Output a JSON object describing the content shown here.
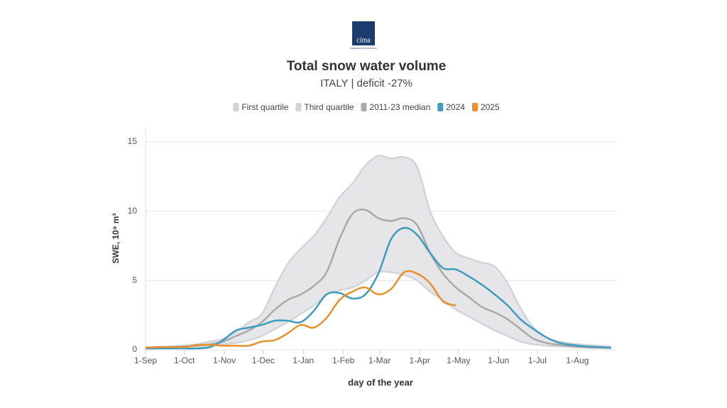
{
  "logo": {
    "name": "cima",
    "tagline": "RESEARCH FOUNDATION"
  },
  "chart_data": {
    "type": "line",
    "title": "Total snow water volume",
    "subtitle": "ITALY | deficit -27%",
    "xlabel": "day of the year",
    "ylabel": "SWE, 10⁹ m³",
    "x": [
      0,
      10,
      20,
      30,
      40,
      50,
      60,
      70,
      80,
      90,
      100,
      110,
      120,
      130,
      140,
      150,
      160,
      170,
      180,
      190,
      200,
      210,
      220,
      230,
      240,
      250,
      260,
      270,
      280,
      290,
      300,
      310,
      320,
      330,
      340,
      350,
      360
    ],
    "xlim": [
      0,
      364
    ],
    "xticks": [
      {
        "value": 0,
        "label": "1-Sep"
      },
      {
        "value": 30,
        "label": "1-Oct"
      },
      {
        "value": 61,
        "label": "1-Nov"
      },
      {
        "value": 91,
        "label": "1-Dec"
      },
      {
        "value": 122,
        "label": "1-Jan"
      },
      {
        "value": 153,
        "label": "1-Feb"
      },
      {
        "value": 181,
        "label": "1-Mar"
      },
      {
        "value": 212,
        "label": "1-Apr"
      },
      {
        "value": 242,
        "label": "1-May"
      },
      {
        "value": 273,
        "label": "1-Jun"
      },
      {
        "value": 303,
        "label": "1-Jul"
      },
      {
        "value": 334,
        "label": "1-Aug"
      }
    ],
    "ylim": [
      0,
      15
    ],
    "yticks": [
      0,
      5,
      10,
      15
    ],
    "grid": true,
    "legend": "top",
    "band_color": "#e6e6e8",
    "series": [
      {
        "name": "First quartile",
        "color": "#d3d4d9",
        "values": [
          0.1,
          0.1,
          0.15,
          0.2,
          0.25,
          0.3,
          0.4,
          0.5,
          0.7,
          1.0,
          1.5,
          2.0,
          2.6,
          3.2,
          4.0,
          4.3,
          4.5,
          5.0,
          5.6,
          5.6,
          5.4,
          5.0,
          4.2,
          3.6,
          2.9,
          2.4,
          1.9,
          1.4,
          1.0,
          0.6,
          0.4,
          0.3,
          0.25,
          0.2,
          0.15,
          0.12,
          0.1
        ]
      },
      {
        "name": "Third quartile",
        "color": "#d3d4d9",
        "values": [
          0.2,
          0.2,
          0.25,
          0.3,
          0.4,
          0.6,
          0.8,
          1.3,
          2.0,
          2.6,
          4.5,
          6.2,
          7.3,
          8.2,
          9.5,
          11.0,
          12.0,
          13.3,
          14.0,
          13.8,
          13.9,
          13.2,
          10.0,
          8.2,
          7.0,
          6.6,
          6.3,
          6.0,
          4.8,
          3.0,
          1.6,
          0.9,
          0.6,
          0.45,
          0.35,
          0.3,
          0.25
        ]
      },
      {
        "name": "2011-23 median",
        "color": "#a9a9a9",
        "values": [
          0.15,
          0.15,
          0.2,
          0.25,
          0.3,
          0.4,
          0.6,
          1.0,
          1.4,
          2.0,
          2.9,
          3.6,
          4.0,
          4.6,
          5.6,
          8.0,
          9.8,
          10.1,
          9.5,
          9.3,
          9.5,
          9.0,
          7.0,
          5.5,
          4.5,
          3.8,
          3.1,
          2.7,
          2.2,
          1.5,
          0.8,
          0.5,
          0.35,
          0.25,
          0.2,
          0.18,
          0.15
        ]
      },
      {
        "name": "2024",
        "color": "#3f9bbf",
        "values": [
          0.1,
          0.1,
          0.1,
          0.1,
          0.1,
          0.2,
          0.7,
          1.4,
          1.6,
          1.8,
          2.1,
          2.1,
          2.0,
          2.8,
          4.0,
          4.1,
          3.7,
          4.0,
          5.5,
          8.0,
          8.8,
          8.3,
          7.0,
          5.9,
          5.8,
          5.3,
          4.7,
          4.0,
          3.2,
          2.2,
          1.5,
          0.9,
          0.5,
          0.35,
          0.25,
          0.2,
          0.15
        ]
      },
      {
        "name": "2025",
        "color": "#e8902d",
        "values": [
          0.15,
          0.2,
          0.2,
          0.2,
          0.35,
          0.35,
          0.3,
          0.3,
          0.3,
          0.6,
          0.7,
          1.2,
          1.8,
          1.6,
          2.3,
          3.6,
          4.2,
          4.5,
          4.0,
          4.4,
          5.6,
          5.5,
          4.8,
          3.5,
          3.2,
          null,
          null,
          null,
          null,
          null,
          null,
          null,
          null,
          null,
          null,
          null,
          null
        ]
      }
    ]
  }
}
